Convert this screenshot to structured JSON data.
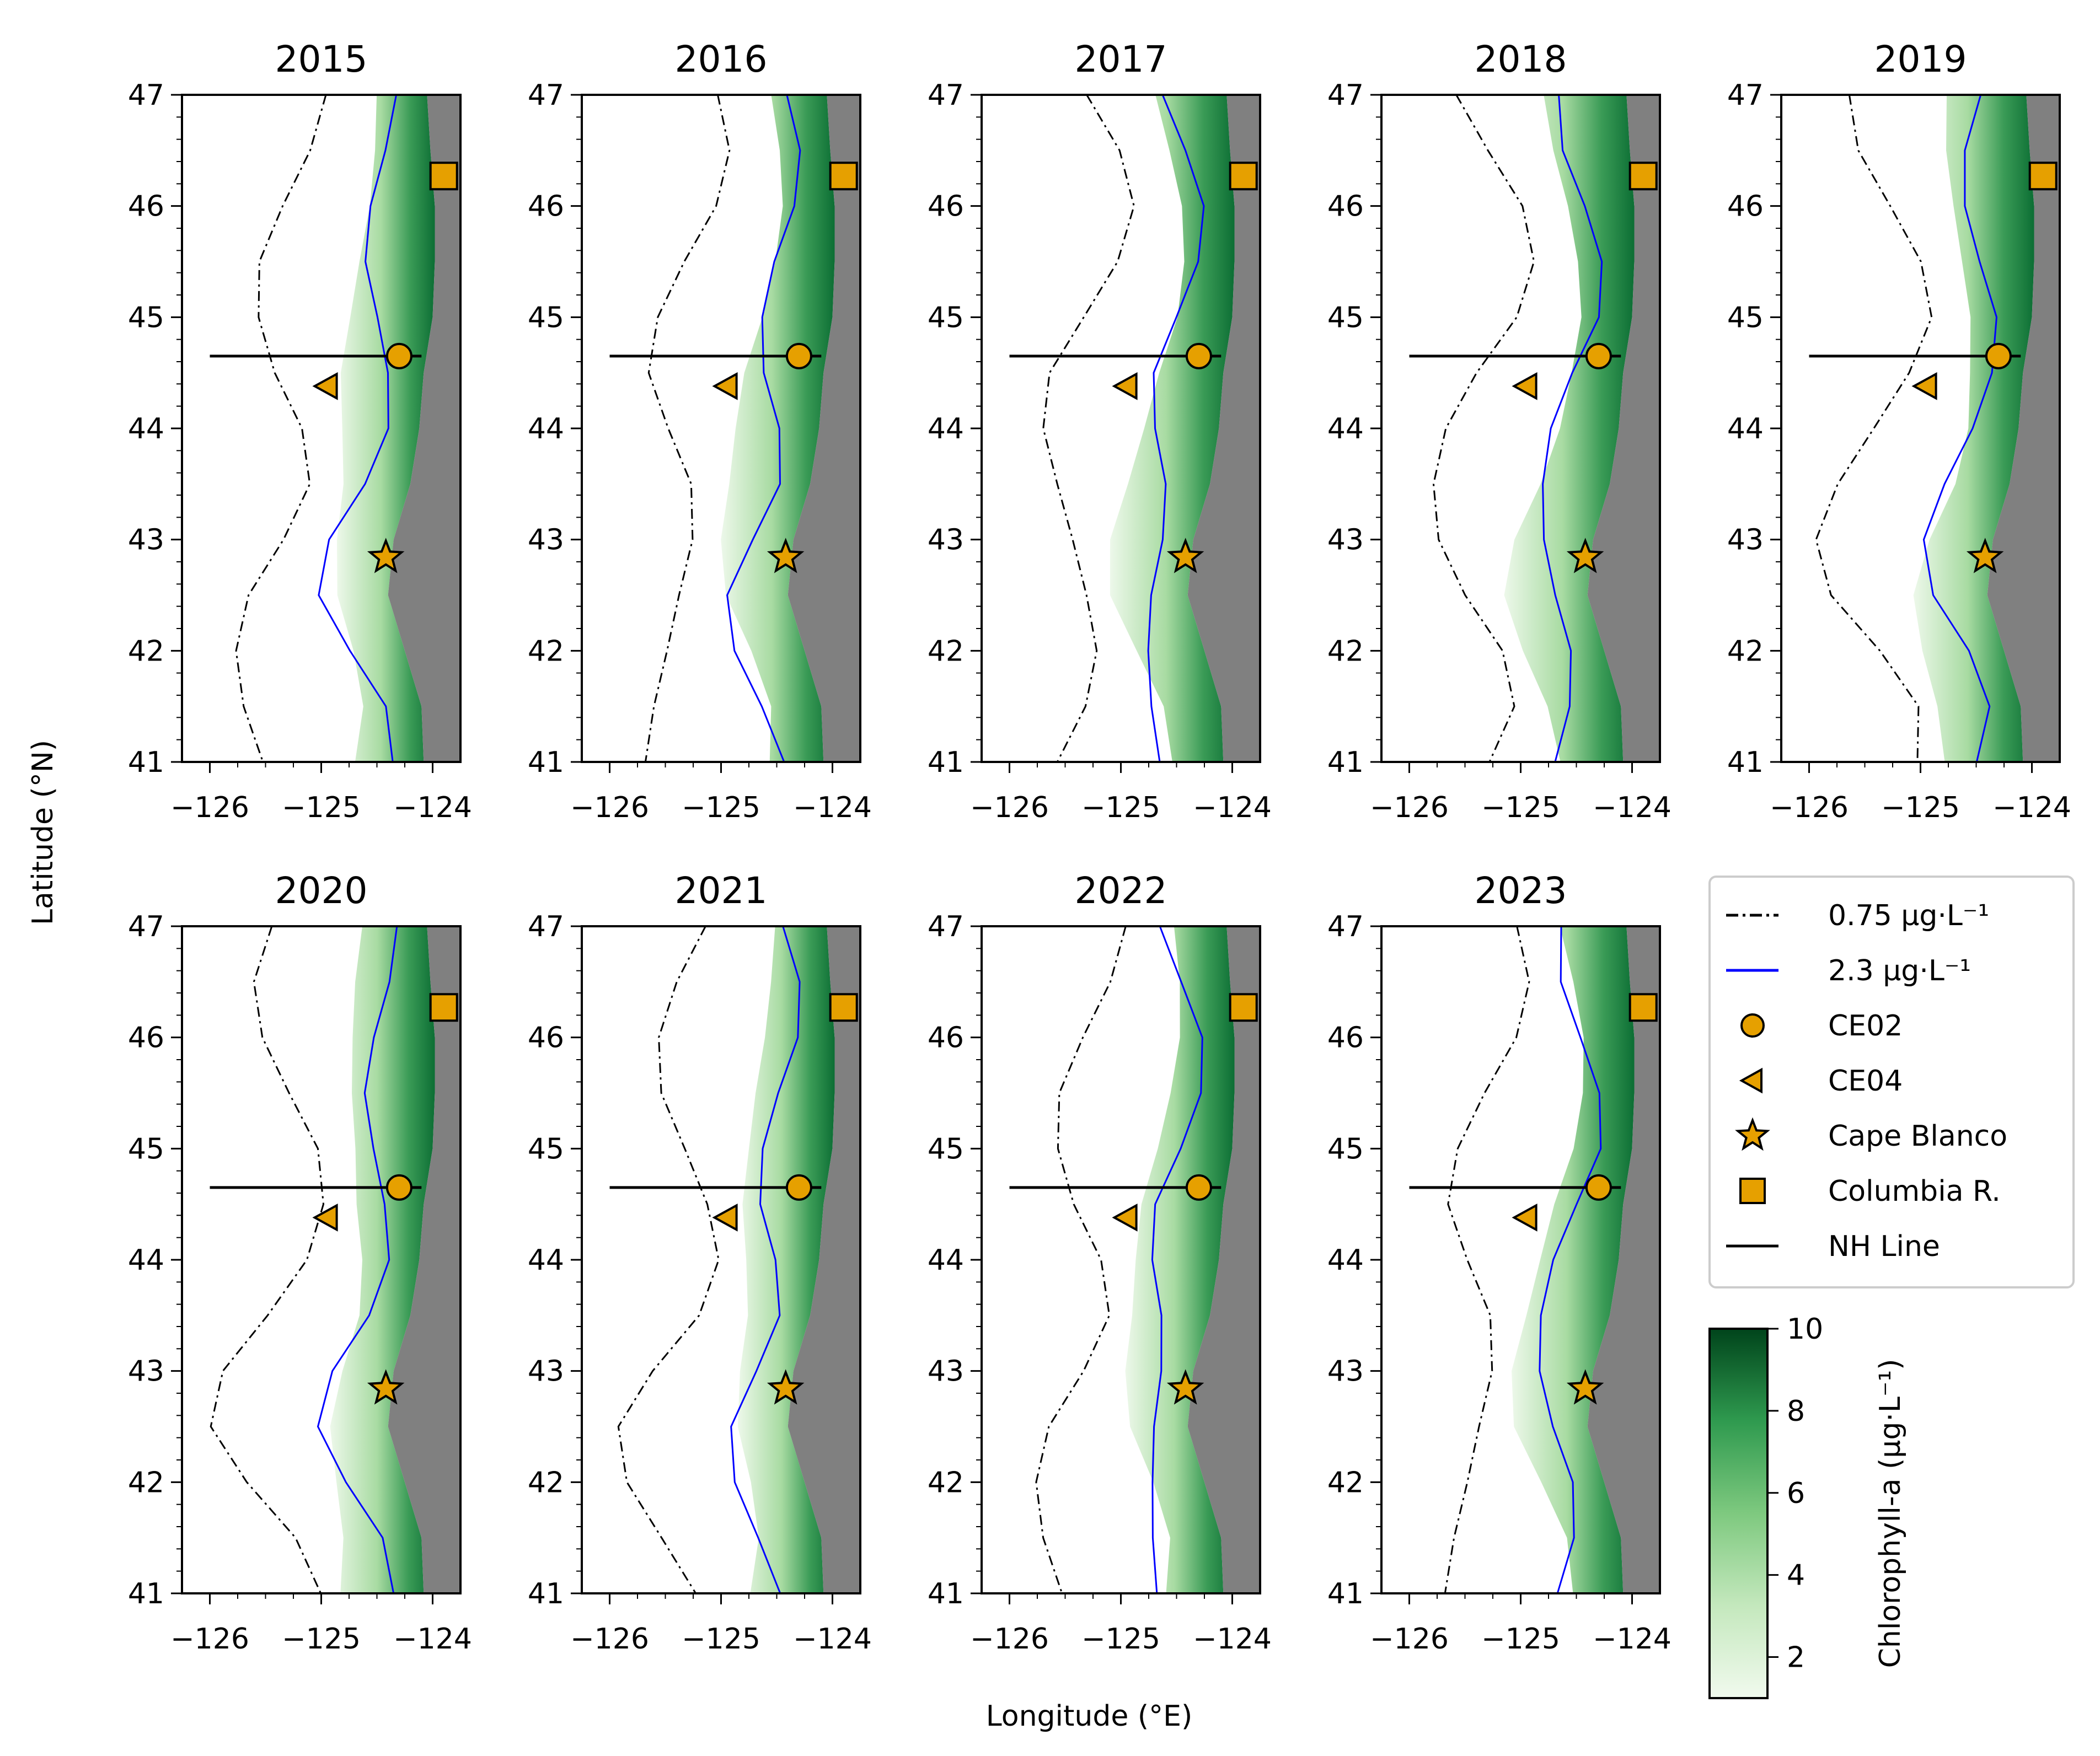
{
  "figure": {
    "xlabel": "Longitude (°E)",
    "ylabel": "Latitude (°N)",
    "x_ticks": [
      "−126",
      "−125",
      "−124"
    ],
    "y_ticks": [
      "41",
      "42",
      "43",
      "44",
      "45",
      "46",
      "47"
    ],
    "xlim": [
      -126.25,
      -123.75
    ],
    "ylim": [
      41,
      47
    ],
    "land_color": "#808080",
    "contour_low_color": "#000000",
    "contour_high_color": "#0000ff",
    "marker_color": "#e6a000"
  },
  "panels": [
    {
      "title": "2015"
    },
    {
      "title": "2016"
    },
    {
      "title": "2017"
    },
    {
      "title": "2018"
    },
    {
      "title": "2019"
    },
    {
      "title": "2020"
    },
    {
      "title": "2021"
    },
    {
      "title": "2022"
    },
    {
      "title": "2023"
    }
  ],
  "sites": {
    "CE02": {
      "lon": -124.3,
      "lat": 44.65
    },
    "CE04": {
      "lon": -124.95,
      "lat": 44.38
    },
    "Cape Blanco": {
      "lon": -124.42,
      "lat": 42.84
    },
    "Columbia R.": {
      "lon": -123.9,
      "lat": 46.27
    },
    "NH Line": {
      "lon_start": -126.0,
      "lon_end": -124.1,
      "lat": 44.65
    }
  },
  "legend": {
    "items": [
      {
        "label": "0.75 μg·L⁻¹",
        "icon": "dash-dot-line"
      },
      {
        "label": "2.3 μg·L⁻¹",
        "icon": "blue-line"
      },
      {
        "label": "CE02",
        "icon": "circle-marker"
      },
      {
        "label": "CE04",
        "icon": "left-triangle-marker"
      },
      {
        "label": "Cape Blanco",
        "icon": "star-marker"
      },
      {
        "label": "Columbia R.",
        "icon": "square-marker"
      },
      {
        "label": "NH Line",
        "icon": "solid-line"
      }
    ]
  },
  "colorbar": {
    "label": "Chlorophyll-a (μg·L⁻¹)",
    "ticks": [
      "2",
      "4",
      "6",
      "8",
      "10"
    ],
    "range": [
      1,
      10
    ],
    "colormap": "Greens"
  },
  "chart_data": {
    "type": "heatmap",
    "variable": "Chlorophyll-a",
    "years": [
      2015,
      2016,
      2017,
      2018,
      2019,
      2020,
      2021,
      2022,
      2023
    ],
    "contour_levels": [
      0.75,
      2.3
    ],
    "xlim": [
      -126.25,
      -123.75
    ],
    "ylim": [
      41,
      47
    ],
    "color_range": [
      1,
      10
    ]
  }
}
